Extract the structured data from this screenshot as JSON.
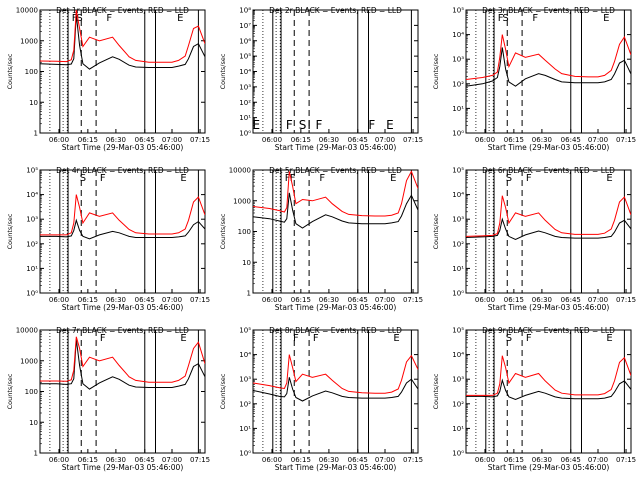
{
  "colors": {
    "events": "#000000",
    "lld": "#ff0000",
    "frame": "#000000"
  },
  "chart_data": [
    {
      "type": "line",
      "title": "Det 1r  BLACK = Events, RED = LLD",
      "xlabel": "Start Time (29-Mar-03 05:46:00)",
      "ylabel": "Counts/sec",
      "scale": "log",
      "ylim": [
        1,
        10000
      ],
      "yticks": [
        "1",
        "10",
        "100",
        "1000",
        "10000"
      ],
      "xticks": [
        "06:00",
        "06:15",
        "06:30",
        "06:45",
        "07:00",
        "07:15"
      ],
      "xlim": [
        0,
        100
      ],
      "markers": [
        "F",
        "S",
        "F",
        "E"
      ],
      "series": [
        {
          "name": "Events",
          "x": [
            0,
            10,
            16,
            19,
            20.5,
            22,
            24,
            26,
            30,
            36,
            44,
            48,
            54,
            58,
            66,
            74,
            80,
            84,
            88,
            90,
            93,
            96,
            100
          ],
          "y": [
            180,
            170,
            165,
            175,
            260,
            7000,
            700,
            180,
            120,
            190,
            300,
            250,
            160,
            140,
            135,
            135,
            135,
            150,
            170,
            260,
            650,
            800,
            300
          ]
        },
        {
          "name": "LLD",
          "x": [
            0,
            10,
            16,
            19,
            20.5,
            22,
            24,
            26,
            30,
            36,
            44,
            48,
            54,
            58,
            66,
            74,
            80,
            84,
            88,
            90,
            93,
            96,
            100
          ],
          "y": [
            220,
            215,
            210,
            240,
            500,
            10000,
            2500,
            650,
            1300,
            1000,
            1300,
            700,
            300,
            230,
            200,
            200,
            200,
            230,
            320,
            700,
            2500,
            3000,
            800
          ]
        }
      ]
    },
    {
      "type": "line",
      "title": "Det 2r  BLACK = Events, RED = LLD",
      "xlabel": "Start Time (29-Mar-03 05:46:00)",
      "ylabel": "Counts/sec",
      "scale": "log",
      "ylim": [
        1,
        100000000
      ],
      "yticks": [
        "10⁰",
        "10¹",
        "10²",
        "10³",
        "10⁴",
        "10⁵",
        "10⁶",
        "10⁷",
        "10⁸"
      ],
      "xticks": [
        "06:00",
        "06:15",
        "06:30",
        "06:45",
        "07:00",
        "07:15"
      ],
      "xlim": [
        0,
        100
      ],
      "markers": [
        "E",
        "F",
        "S",
        "I",
        "F",
        "F",
        "E"
      ],
      "series": []
    },
    {
      "type": "line",
      "title": "Det 3r  BLACK = Events, RED = LLD",
      "xlabel": "Start Time (29-Mar-03 05:46:00)",
      "ylabel": "Counts/sec",
      "scale": "log",
      "ylim": [
        1,
        100000
      ],
      "yticks": [
        "10⁰",
        "10¹",
        "10²",
        "10³",
        "10⁴",
        "10⁵"
      ],
      "xticks": [
        "06:00",
        "06:15",
        "06:30",
        "06:45",
        "07:00",
        "07:15"
      ],
      "xlim": [
        0,
        100
      ],
      "markers": [
        "F",
        "S",
        "F",
        "E"
      ],
      "series": [
        {
          "name": "Events",
          "x": [
            0,
            10,
            16,
            19,
            20.5,
            22,
            24,
            26,
            30,
            36,
            44,
            48,
            54,
            58,
            66,
            74,
            80,
            84,
            88,
            90,
            93,
            96,
            100
          ],
          "y": [
            80,
            100,
            130,
            180,
            500,
            3000,
            400,
            120,
            80,
            160,
            260,
            220,
            150,
            120,
            110,
            110,
            110,
            120,
            150,
            250,
            700,
            900,
            250
          ]
        },
        {
          "name": "LLD",
          "x": [
            0,
            10,
            16,
            19,
            20.5,
            22,
            24,
            26,
            30,
            36,
            44,
            48,
            54,
            58,
            66,
            74,
            80,
            84,
            88,
            90,
            93,
            96,
            100
          ],
          "y": [
            150,
            180,
            220,
            300,
            1200,
            10000,
            2500,
            500,
            1800,
            1200,
            1600,
            900,
            400,
            260,
            200,
            190,
            190,
            220,
            350,
            800,
            4000,
            8000,
            1500
          ]
        }
      ]
    },
    {
      "type": "line",
      "title": "Det 4r  BLACK = Events, RED = LLD",
      "xlabel": "Start Time (29-Mar-03 05:46:00)",
      "ylabel": "Counts/sec",
      "scale": "log",
      "ylim": [
        1,
        100000
      ],
      "yticks": [
        "10⁰",
        "10¹",
        "10²",
        "10³",
        "10⁴",
        "10⁵"
      ],
      "xticks": [
        "06:00",
        "06:15",
        "06:30",
        "06:45",
        "07:00",
        "07:15"
      ],
      "xlim": [
        0,
        100
      ],
      "markers": [
        "S",
        "F",
        "E"
      ],
      "series": [
        {
          "name": "Events",
          "x": [
            0,
            10,
            16,
            19,
            20.5,
            22,
            24,
            26,
            30,
            36,
            44,
            48,
            54,
            58,
            66,
            74,
            80,
            84,
            88,
            90,
            93,
            96,
            100
          ],
          "y": [
            200,
            200,
            190,
            210,
            350,
            900,
            350,
            200,
            160,
            230,
            320,
            280,
            200,
            180,
            180,
            180,
            180,
            190,
            210,
            300,
            600,
            800,
            400
          ]
        },
        {
          "name": "LLD",
          "x": [
            0,
            10,
            16,
            19,
            20.5,
            22,
            24,
            26,
            30,
            36,
            44,
            48,
            54,
            58,
            66,
            74,
            80,
            84,
            88,
            90,
            93,
            96,
            100
          ],
          "y": [
            230,
            230,
            230,
            280,
            700,
            10000,
            3000,
            700,
            1800,
            1300,
            1800,
            900,
            380,
            280,
            250,
            250,
            250,
            280,
            400,
            900,
            5000,
            8000,
            1500
          ]
        }
      ]
    },
    {
      "type": "line",
      "title": "Det 5r  BLACK = Events, RED = LLD",
      "xlabel": "Start Time (29-Mar-03 05:46:00)",
      "ylabel": "Counts/sec",
      "scale": "log",
      "ylim": [
        1,
        10000
      ],
      "yticks": [
        "1",
        "10",
        "100",
        "1000",
        "10000"
      ],
      "xticks": [
        "06:00",
        "06:15",
        "06:30",
        "06:45",
        "07:00",
        "07:15"
      ],
      "xlim": [
        0,
        100
      ],
      "markers": [
        "F",
        "F",
        "F",
        "E"
      ],
      "series": [
        {
          "name": "Events",
          "x": [
            0,
            10,
            16,
            19,
            20.5,
            22,
            24,
            26,
            30,
            36,
            44,
            48,
            54,
            58,
            66,
            74,
            80,
            84,
            88,
            90,
            93,
            96,
            100
          ],
          "y": [
            300,
            260,
            220,
            200,
            260,
            1800,
            500,
            180,
            130,
            210,
            350,
            300,
            220,
            190,
            180,
            180,
            180,
            190,
            210,
            320,
            800,
            1500,
            500
          ]
        },
        {
          "name": "LLD",
          "x": [
            0,
            10,
            16,
            19,
            20.5,
            22,
            24,
            26,
            30,
            36,
            44,
            48,
            54,
            58,
            66,
            74,
            80,
            84,
            88,
            90,
            93,
            96,
            100
          ],
          "y": [
            650,
            560,
            480,
            430,
            600,
            9000,
            3000,
            800,
            1100,
            1000,
            1300,
            800,
            450,
            360,
            330,
            320,
            320,
            340,
            400,
            800,
            4500,
            9000,
            2500
          ]
        }
      ]
    },
    {
      "type": "line",
      "title": "Det 6r  BLACK = Events, RED = LLD",
      "xlabel": "Start Time (29-Mar-03 05:46:00)",
      "ylabel": "Counts/sec",
      "scale": "log",
      "ylim": [
        1,
        100000
      ],
      "yticks": [
        "10⁰",
        "10¹",
        "10²",
        "10³",
        "10⁴",
        "10⁵"
      ],
      "xticks": [
        "06:00",
        "06:15",
        "06:30",
        "06:45",
        "07:00",
        "07:15"
      ],
      "xlim": [
        0,
        100
      ],
      "markers": [
        "S",
        "F",
        "E"
      ],
      "series": [
        {
          "name": "Events",
          "x": [
            0,
            10,
            16,
            19,
            20.5,
            22,
            24,
            26,
            30,
            36,
            44,
            48,
            54,
            58,
            66,
            74,
            80,
            84,
            88,
            90,
            93,
            96,
            100
          ],
          "y": [
            180,
            190,
            200,
            220,
            350,
            1000,
            400,
            200,
            150,
            230,
            330,
            280,
            200,
            180,
            170,
            170,
            170,
            180,
            200,
            300,
            700,
            900,
            400
          ]
        },
        {
          "name": "LLD",
          "x": [
            0,
            10,
            16,
            19,
            20.5,
            22,
            24,
            26,
            30,
            36,
            44,
            48,
            54,
            58,
            66,
            74,
            80,
            84,
            88,
            90,
            93,
            96,
            100
          ],
          "y": [
            200,
            210,
            220,
            260,
            700,
            9000,
            3000,
            700,
            1800,
            1300,
            1800,
            900,
            380,
            280,
            240,
            240,
            240,
            270,
            400,
            900,
            5000,
            8000,
            1500
          ]
        }
      ]
    },
    {
      "type": "line",
      "title": "Det 7r  BLACK = Events, RED = LLD",
      "xlabel": "Start Time (29-Mar-03 05:46:00)",
      "ylabel": "Counts/sec",
      "scale": "log",
      "ylim": [
        1,
        10000
      ],
      "yticks": [
        "1",
        "10",
        "100",
        "1000",
        "10000"
      ],
      "xticks": [
        "06:00",
        "06:15",
        "06:30",
        "06:45",
        "07:00",
        "07:15"
      ],
      "xlim": [
        0,
        100
      ],
      "markers": [
        "F",
        "E"
      ],
      "series": [
        {
          "name": "Events",
          "x": [
            0,
            10,
            16,
            19,
            20.5,
            22,
            24,
            26,
            30,
            36,
            44,
            48,
            54,
            58,
            66,
            74,
            80,
            84,
            88,
            90,
            93,
            96,
            100
          ],
          "y": [
            180,
            180,
            170,
            180,
            260,
            5000,
            700,
            180,
            120,
            190,
            300,
            250,
            160,
            140,
            135,
            135,
            135,
            150,
            170,
            260,
            650,
            800,
            300
          ]
        },
        {
          "name": "LLD",
          "x": [
            0,
            10,
            16,
            19,
            20.5,
            22,
            24,
            26,
            30,
            36,
            44,
            48,
            54,
            58,
            66,
            74,
            80,
            84,
            88,
            90,
            93,
            96,
            100
          ],
          "y": [
            220,
            220,
            215,
            240,
            500,
            6000,
            2500,
            650,
            1300,
            1000,
            1300,
            700,
            300,
            230,
            200,
            200,
            200,
            230,
            320,
            700,
            2500,
            4000,
            800
          ]
        }
      ]
    },
    {
      "type": "line",
      "title": "Det 8r  BLACK = Events, RED = LLD",
      "xlabel": "Start Time (29-Mar-03 05:46:00)",
      "ylabel": "Counts/sec",
      "scale": "log",
      "ylim": [
        1,
        100000
      ],
      "yticks": [
        "10⁰",
        "10¹",
        "10²",
        "10³",
        "10⁴",
        "10⁵"
      ],
      "xticks": [
        "06:00",
        "06:15",
        "06:30",
        "06:45",
        "07:00",
        "07:15"
      ],
      "xlim": [
        0,
        100
      ],
      "markers": [
        "F",
        "F",
        "E"
      ],
      "series": [
        {
          "name": "Events",
          "x": [
            0,
            10,
            16,
            19,
            20.5,
            22,
            24,
            26,
            30,
            36,
            44,
            48,
            54,
            58,
            66,
            74,
            80,
            84,
            88,
            90,
            93,
            96,
            100
          ],
          "y": [
            350,
            250,
            200,
            190,
            260,
            1200,
            400,
            180,
            130,
            210,
            330,
            280,
            200,
            180,
            170,
            170,
            170,
            180,
            200,
            300,
            700,
            1000,
            400
          ]
        },
        {
          "name": "LLD",
          "x": [
            0,
            10,
            16,
            19,
            20.5,
            22,
            24,
            26,
            30,
            36,
            44,
            48,
            54,
            58,
            66,
            74,
            80,
            84,
            88,
            90,
            93,
            96,
            100
          ],
          "y": [
            700,
            550,
            450,
            420,
            700,
            10000,
            3000,
            800,
            1600,
            1200,
            1600,
            900,
            420,
            320,
            280,
            270,
            270,
            300,
            400,
            900,
            5000,
            9000,
            2500
          ]
        }
      ]
    },
    {
      "type": "line",
      "title": "Det 9r  BLACK = Events, RED = LLD",
      "xlabel": "Start Time (29-Mar-03 05:46:00)",
      "ylabel": "Counts/sec",
      "scale": "log",
      "ylim": [
        1,
        100000
      ],
      "yticks": [
        "10⁰",
        "10¹",
        "10²",
        "10³",
        "10⁴",
        "10⁵"
      ],
      "xticks": [
        "06:00",
        "06:15",
        "06:30",
        "06:45",
        "07:00",
        "07:15"
      ],
      "xlim": [
        0,
        100
      ],
      "markers": [
        "S",
        "F",
        "E"
      ],
      "series": [
        {
          "name": "Events",
          "x": [
            0,
            10,
            16,
            19,
            20.5,
            22,
            24,
            26,
            30,
            36,
            44,
            48,
            54,
            58,
            66,
            74,
            80,
            84,
            88,
            90,
            93,
            96,
            100
          ],
          "y": [
            200,
            200,
            190,
            210,
            320,
            900,
            350,
            190,
            150,
            220,
            320,
            270,
            190,
            170,
            160,
            160,
            160,
            170,
            200,
            300,
            650,
            850,
            380
          ]
        },
        {
          "name": "LLD",
          "x": [
            0,
            10,
            16,
            19,
            20.5,
            22,
            24,
            26,
            30,
            36,
            44,
            48,
            54,
            58,
            66,
            74,
            80,
            84,
            88,
            90,
            93,
            96,
            100
          ],
          "y": [
            220,
            220,
            220,
            270,
            650,
            9000,
            3000,
            700,
            1700,
            1200,
            1700,
            850,
            360,
            270,
            230,
            230,
            230,
            260,
            380,
            850,
            4800,
            7500,
            1400
          ]
        }
      ]
    }
  ]
}
